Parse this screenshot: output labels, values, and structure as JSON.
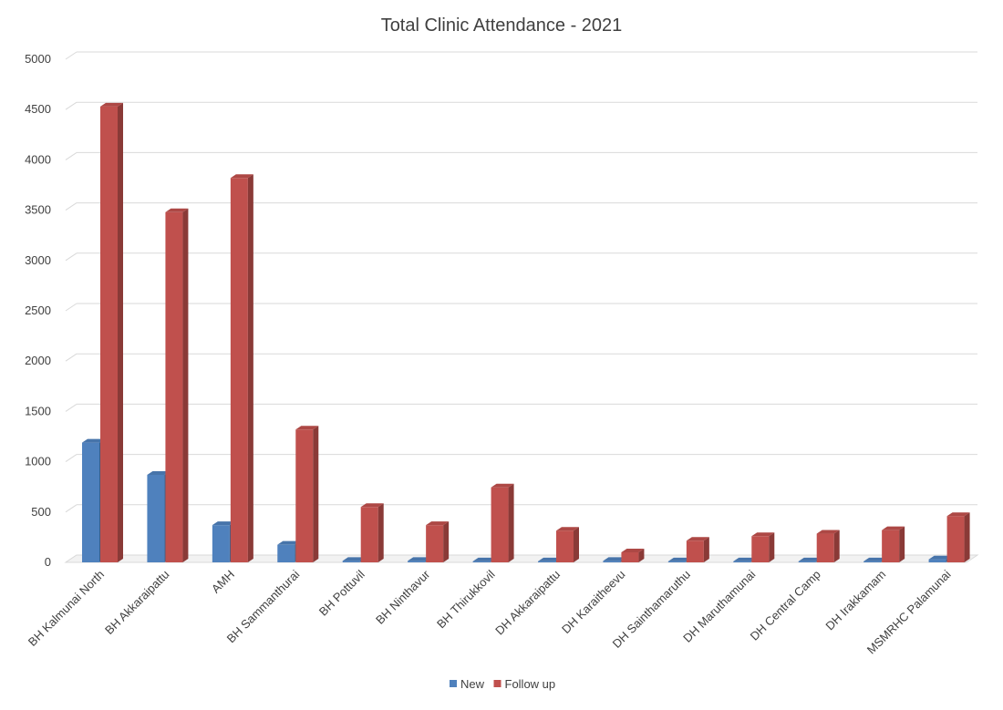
{
  "chart_data": {
    "type": "bar",
    "title": "Total Clinic Attendance - 2021",
    "xlabel": "",
    "ylabel": "",
    "ylim": [
      0,
      5000
    ],
    "yticks": [
      0,
      500,
      1000,
      1500,
      2000,
      2500,
      3000,
      3500,
      4000,
      4500,
      5000
    ],
    "grid": true,
    "legend_position": "bottom",
    "categories": [
      "BH Kalmunai North",
      "BH Akkaraipattu",
      "AMH",
      "BH Sammanthurai",
      "BH Pottuvil",
      "BH Ninthavur",
      "BH Thirukkovil",
      "DH Akkaraipattu",
      "DH Karaitheevu",
      "DH Sainthamaruthu",
      "DH Maruthamunai",
      "DH Central Camp",
      "DH Irakkamam",
      "MSMRHC Palamunai"
    ],
    "series": [
      {
        "name": "New",
        "color": "#4f81bd",
        "values": [
          1190,
          870,
          370,
          175,
          15,
          15,
          10,
          10,
          15,
          10,
          10,
          10,
          10,
          30
        ]
      },
      {
        "name": "Follow up",
        "color": "#c0504d",
        "values": [
          4530,
          3480,
          3820,
          1320,
          550,
          370,
          745,
          315,
          100,
          215,
          260,
          285,
          320,
          460
        ]
      }
    ]
  }
}
